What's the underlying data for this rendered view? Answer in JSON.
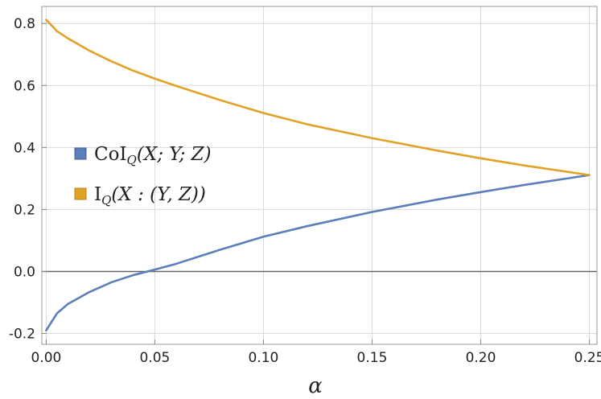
{
  "chart_data": {
    "type": "line",
    "title": "",
    "xlabel": "α",
    "ylabel": "",
    "xlim": [
      0,
      0.25
    ],
    "ylim": [
      -0.2,
      0.85
    ],
    "xticks": [
      0.0,
      0.05,
      0.1,
      0.15,
      0.2,
      0.25
    ],
    "xtick_labels": [
      "0.00",
      "0.05",
      "0.10",
      "0.15",
      "0.20",
      "0.25"
    ],
    "yticks": [
      -0.2,
      0.0,
      0.2,
      0.4,
      0.6,
      0.8
    ],
    "ytick_labels": [
      "-0.2",
      "0.0",
      "0.2",
      "0.4",
      "0.6",
      "0.8"
    ],
    "grid": true,
    "legend_position": "center-left",
    "series": [
      {
        "name": "CoI_Q(X;Y;Z)",
        "color": "#5b7fb8",
        "x": [
          0.0,
          0.005,
          0.01,
          0.02,
          0.03,
          0.04,
          0.05,
          0.06,
          0.08,
          0.1,
          0.12,
          0.15,
          0.18,
          0.2,
          0.22,
          0.25
        ],
        "y": [
          -0.19,
          -0.135,
          -0.105,
          -0.066,
          -0.035,
          -0.012,
          0.006,
          0.025,
          0.07,
          0.112,
          0.146,
          0.192,
          0.232,
          0.256,
          0.279,
          0.311
        ]
      },
      {
        "name": "I_Q(X:(Y,Z))",
        "color": "#e0a227",
        "x": [
          0.0,
          0.005,
          0.01,
          0.02,
          0.03,
          0.04,
          0.05,
          0.06,
          0.08,
          0.1,
          0.12,
          0.15,
          0.18,
          0.2,
          0.22,
          0.25
        ],
        "y": [
          0.812,
          0.775,
          0.752,
          0.712,
          0.678,
          0.648,
          0.622,
          0.598,
          0.553,
          0.511,
          0.475,
          0.43,
          0.39,
          0.365,
          0.342,
          0.311
        ]
      }
    ]
  },
  "legend": {
    "items": [
      {
        "label": "CoI",
        "sub": "Q",
        "args": "(X; Y; Z)",
        "color": "#5b7fb8"
      },
      {
        "label": "I",
        "sub": "Q",
        "args": "(X : (Y, Z))",
        "color": "#e0a227"
      }
    ]
  }
}
